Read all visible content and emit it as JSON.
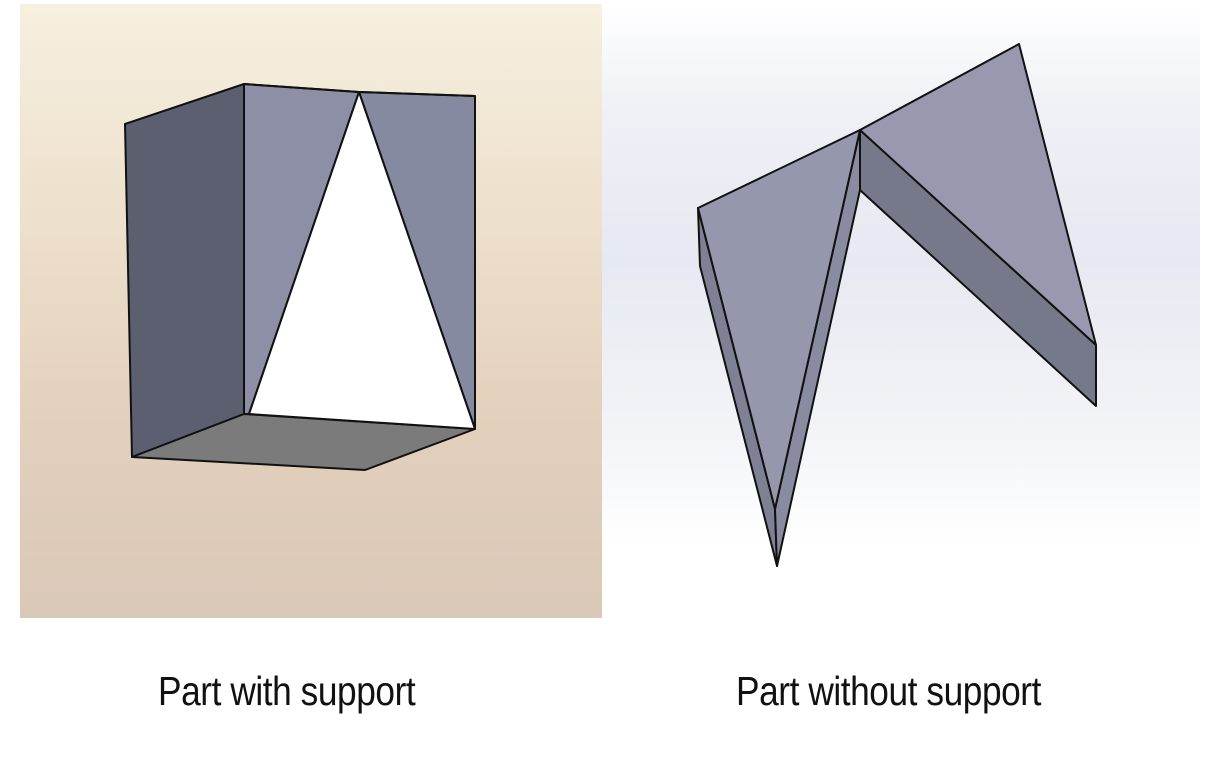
{
  "captions": {
    "left": "Part with support",
    "right": "Part without support"
  },
  "colors": {
    "face_dark": "#5c6070",
    "face_mid": "#8d90a6",
    "face_light": "#9a9db2",
    "face_bottom": "#7c7c7c",
    "face_white": "#ffffff",
    "side_strip": "#787b8c",
    "edge": "#111111"
  }
}
